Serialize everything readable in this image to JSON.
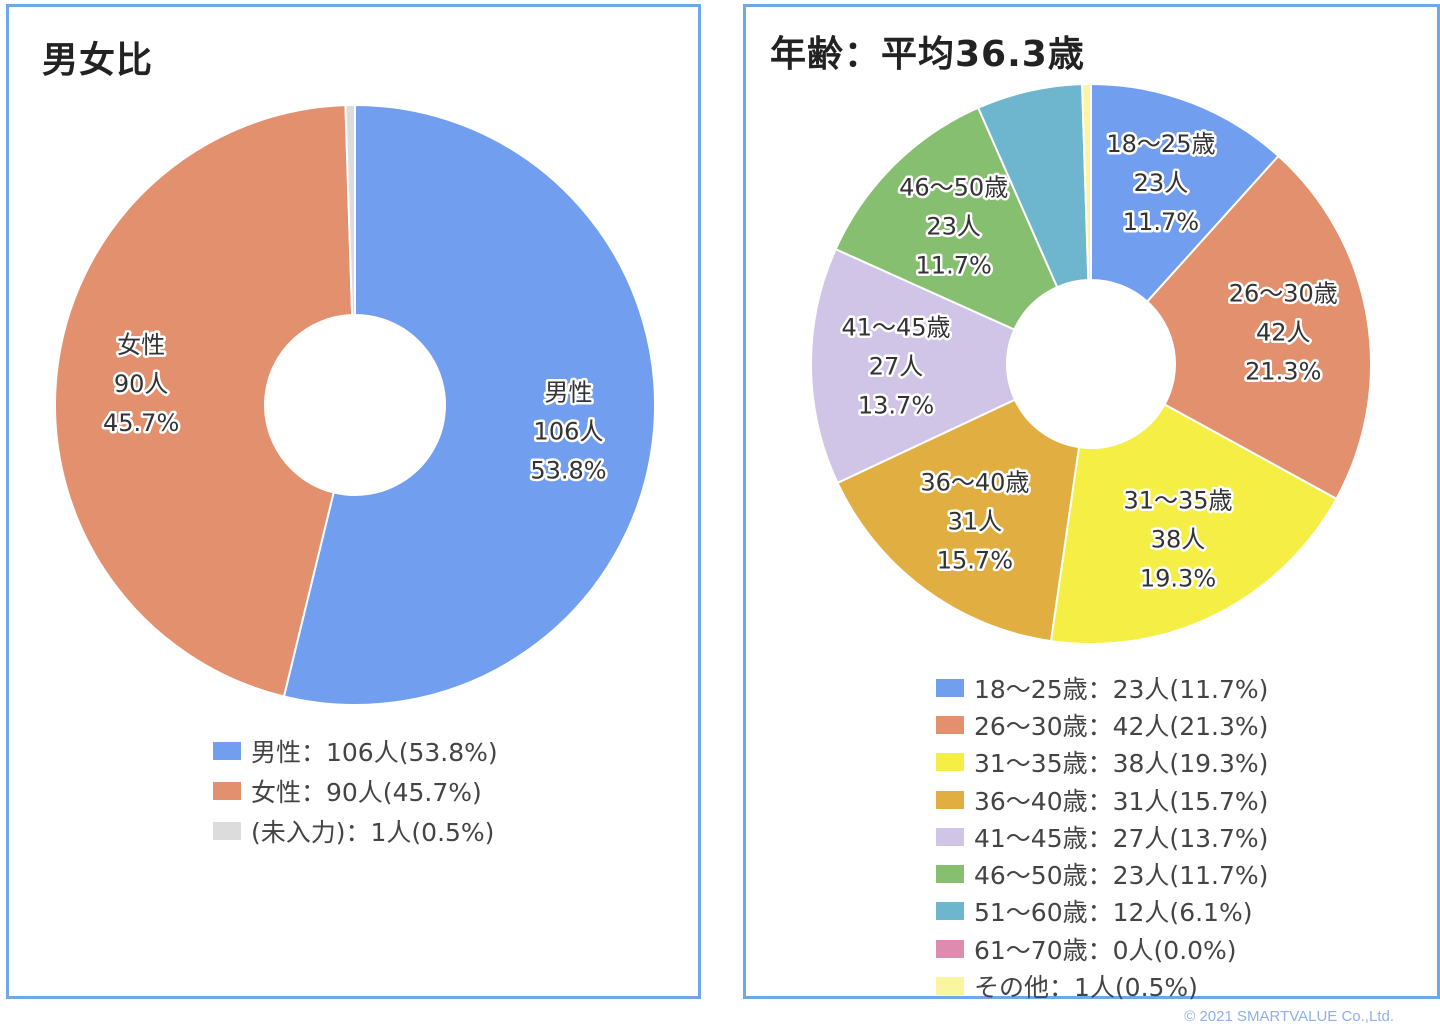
{
  "chart_data": [
    {
      "type": "pie",
      "variant": "donut",
      "title": "男女比",
      "slices": [
        {
          "name": "男性",
          "count": 106,
          "count_label": "106人",
          "pct": 53.8,
          "pct_label": "53.8%",
          "color": "#729ef0",
          "legend": "男性：106人(53.8%)"
        },
        {
          "name": "女性",
          "count": 90,
          "count_label": "90人",
          "pct": 45.7,
          "pct_label": "45.7%",
          "color": "#e2906d",
          "legend": "女性：90人(45.7%)"
        },
        {
          "name": "(未入力)",
          "count": 1,
          "count_label": "1人",
          "pct": 0.5,
          "pct_label": "0.5%",
          "color": "#dcdcdc",
          "legend": "(未入力)：1人(0.5%)"
        }
      ],
      "legend_position": "bottom"
    },
    {
      "type": "pie",
      "variant": "donut",
      "title": "年齢：平均36.3歳",
      "slices": [
        {
          "name": "18〜25歳",
          "count": 23,
          "count_label": "23人",
          "pct": 11.7,
          "pct_label": "11.7%",
          "color": "#729ef0",
          "legend": "18〜25歳：23人(11.7%)"
        },
        {
          "name": "26〜30歳",
          "count": 42,
          "count_label": "42人",
          "pct": 21.3,
          "pct_label": "21.3%",
          "color": "#e2906d",
          "legend": "26〜30歳：42人(21.3%)"
        },
        {
          "name": "31〜35歳",
          "count": 38,
          "count_label": "38人",
          "pct": 19.3,
          "pct_label": "19.3%",
          "color": "#f5ef45",
          "legend": "31〜35歳：38人(19.3%)"
        },
        {
          "name": "36〜40歳",
          "count": 31,
          "count_label": "31人",
          "pct": 15.7,
          "pct_label": "15.7%",
          "color": "#e1ae42",
          "legend": "36〜40歳：31人(15.7%)"
        },
        {
          "name": "41〜45歳",
          "count": 27,
          "count_label": "27人",
          "pct": 13.7,
          "pct_label": "13.7%",
          "color": "#d0c4e7",
          "legend": "41〜45歳：27人(13.7%)"
        },
        {
          "name": "46〜50歳",
          "count": 23,
          "count_label": "23人",
          "pct": 11.7,
          "pct_label": "11.7%",
          "color": "#86bf70",
          "legend": "46〜50歳：23人(11.7%)"
        },
        {
          "name": "51〜60歳",
          "count": 12,
          "count_label": "12人",
          "pct": 6.1,
          "pct_label": "6.1%",
          "color": "#6db6cd",
          "legend": "51〜60歳：12人(6.1%)"
        },
        {
          "name": "61〜70歳",
          "count": 0,
          "count_label": "0人",
          "pct": 0.0,
          "pct_label": "0.0%",
          "color": "#de8bb0",
          "legend": "61〜70歳：0人(0.0%)"
        },
        {
          "name": "その他",
          "count": 1,
          "count_label": "1人",
          "pct": 0.5,
          "pct_label": "0.5%",
          "color": "#faf6a0",
          "legend": "その他：1人(0.5%)"
        }
      ],
      "legend_position": "bottom"
    }
  ],
  "copyright": "© 2021 SMARTVALUE Co.,Ltd."
}
